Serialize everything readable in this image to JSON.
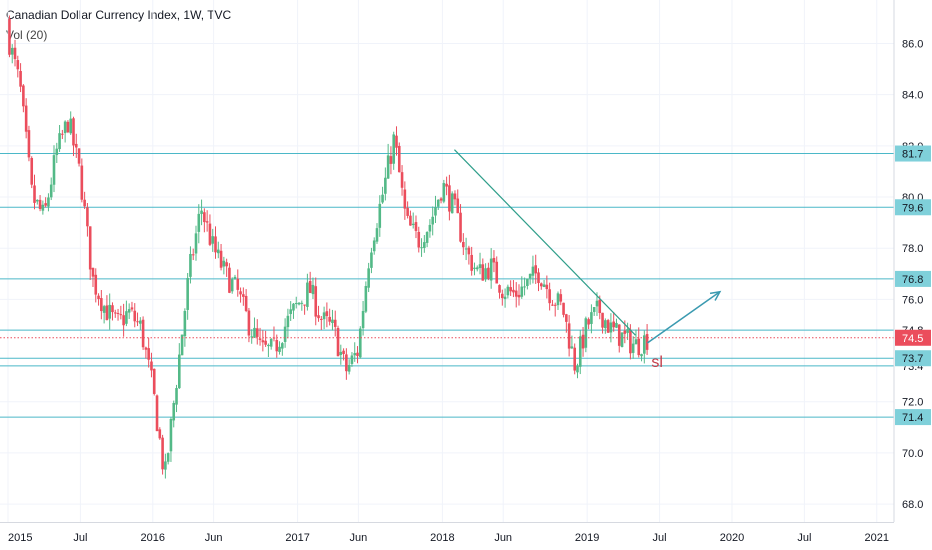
{
  "header": {
    "title": "Canadian Dollar Currency Index, 1W, TVC",
    "volume_label": "Vol (20)"
  },
  "colors": {
    "up": "#53b987",
    "down": "#eb4d5c",
    "hline": "#4bb8c8",
    "trend": "#2f9e8a",
    "price": "#eb4d5c",
    "label_bg": "#7fd0da",
    "arrow": "#3a9ab0",
    "annotation": "#c43c48"
  },
  "chart_data": {
    "type": "candlestick",
    "title": "Canadian Dollar Currency Index, 1W, TVC",
    "ylim": [
      67.3,
      87.7
    ],
    "yticks": [
      "86.0",
      "84.0",
      "82.0",
      "80.0",
      "78.0",
      "76.0",
      "74.8",
      "73.4",
      "72.0",
      "70.0",
      "68.0"
    ],
    "xticks": [
      "2015",
      "Jul",
      "2016",
      "Jun",
      "2017",
      "Jun",
      "2018",
      "Jun",
      "2019",
      "Jul",
      "2020",
      "Jul",
      "2021"
    ],
    "horizontal_levels": [
      {
        "value": 81.7,
        "label": "81.7"
      },
      {
        "value": 79.6,
        "label": "79.6"
      },
      {
        "value": 76.8,
        "label": "76.8"
      },
      {
        "value": 74.8,
        "label": ""
      },
      {
        "value": 73.7,
        "label": "73.7"
      },
      {
        "value": 73.4,
        "label": ""
      },
      {
        "value": 71.4,
        "label": "71.4"
      }
    ],
    "last_price": {
      "value": 74.5,
      "label": "74.5"
    },
    "trendline": {
      "from": [
        "2018-02",
        81.85
      ],
      "to": [
        "2019-05",
        74.6
      ]
    },
    "projection_arrow": {
      "from": [
        "2019-06",
        74.3
      ],
      "to": [
        "2019-12",
        76.3
      ]
    },
    "annotation": "sl",
    "path": [
      [
        "2015-01",
        86.3
      ],
      [
        "2015-02",
        84.3
      ],
      [
        "2015-03",
        80.0
      ],
      [
        "2015-04",
        79.2
      ],
      [
        "2015-05",
        81.7
      ],
      [
        "2015-06",
        83.0
      ],
      [
        "2015-07",
        80.8
      ],
      [
        "2015-08",
        76.8
      ],
      [
        "2015-09",
        75.7
      ],
      [
        "2015-10",
        75.0
      ],
      [
        "2015-11",
        75.5
      ],
      [
        "2015-12",
        74.9
      ],
      [
        "2016-01",
        72.5
      ],
      [
        "2016-02",
        69.0
      ],
      [
        "2016-03",
        73.0
      ],
      [
        "2016-04",
        77.0
      ],
      [
        "2016-05",
        79.6
      ],
      [
        "2016-06",
        78.0
      ],
      [
        "2016-07",
        77.0
      ],
      [
        "2016-08",
        76.3
      ],
      [
        "2016-09",
        75.0
      ],
      [
        "2016-10",
        74.0
      ],
      [
        "2016-11",
        74.0
      ],
      [
        "2016-12",
        75.0
      ],
      [
        "2017-01",
        75.8
      ],
      [
        "2017-02",
        76.4
      ],
      [
        "2017-03",
        75.2
      ],
      [
        "2017-04",
        74.8
      ],
      [
        "2017-05",
        73.2
      ],
      [
        "2017-06",
        74.0
      ],
      [
        "2017-07",
        78.0
      ],
      [
        "2017-08",
        80.0
      ],
      [
        "2017-09",
        82.3
      ],
      [
        "2017-10",
        79.0
      ],
      [
        "2017-11",
        78.3
      ],
      [
        "2017-12",
        79.0
      ],
      [
        "2018-01",
        80.5
      ],
      [
        "2018-02",
        79.5
      ],
      [
        "2018-03",
        77.8
      ],
      [
        "2018-04",
        77.0
      ],
      [
        "2018-05",
        77.3
      ],
      [
        "2018-06",
        76.4
      ],
      [
        "2018-07",
        76.2
      ],
      [
        "2018-08",
        76.6
      ],
      [
        "2018-09",
        77.1
      ],
      [
        "2018-10",
        76.2
      ],
      [
        "2018-11",
        75.6
      ],
      [
        "2018-12",
        73.4
      ],
      [
        "2019-01",
        75.0
      ],
      [
        "2019-02",
        75.6
      ],
      [
        "2019-03",
        74.8
      ],
      [
        "2019-04",
        74.5
      ],
      [
        "2019-05",
        74.2
      ],
      [
        "2019-06",
        74.5
      ]
    ]
  }
}
